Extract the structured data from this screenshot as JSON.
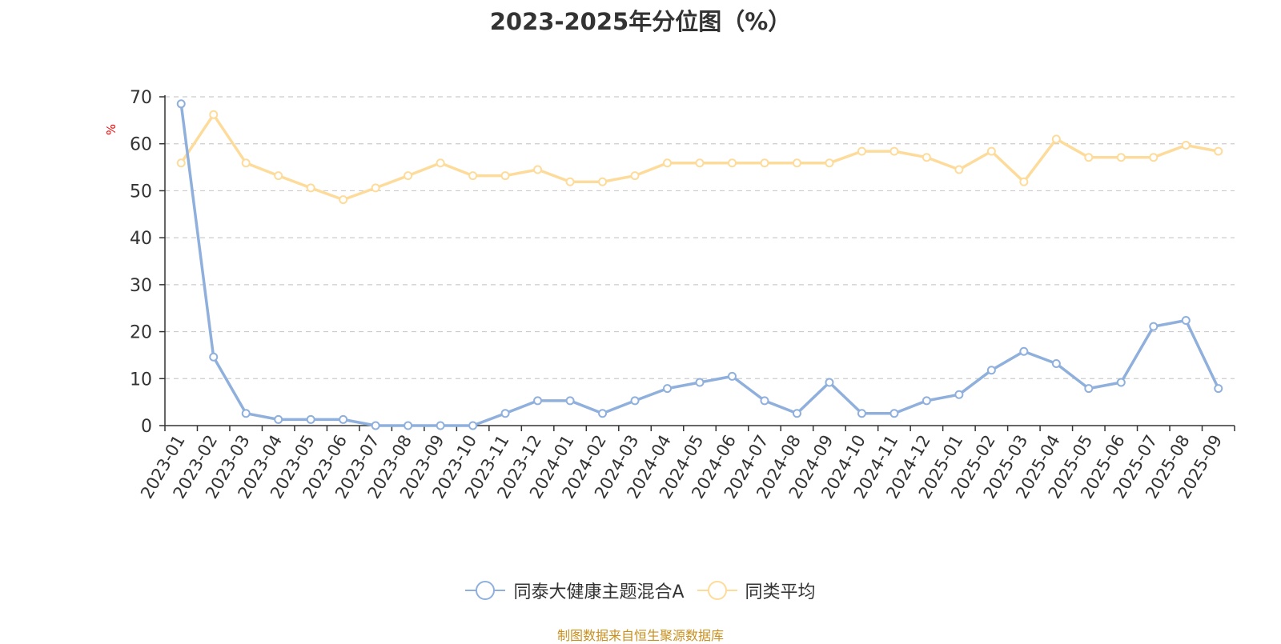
{
  "title": "2023-2025年分位图（%）",
  "source": "制图数据来自恒生聚源数据库",
  "chart_data": {
    "type": "line",
    "title": "2023-2025年分位图（%）",
    "ylabel": "%",
    "xlabel": "",
    "ylim": [
      0,
      70
    ],
    "yticks": [
      0,
      10,
      20,
      30,
      40,
      50,
      60,
      70
    ],
    "grid": true,
    "legend_position": "bottom-center",
    "categories": [
      "2023-01",
      "2023-02",
      "2023-03",
      "2023-04",
      "2023-05",
      "2023-06",
      "2023-07",
      "2023-08",
      "2023-09",
      "2023-10",
      "2023-11",
      "2023-12",
      "2024-01",
      "2024-02",
      "2024-03",
      "2024-04",
      "2024-05",
      "2024-06",
      "2024-07",
      "2024-08",
      "2024-09",
      "2024-10",
      "2024-11",
      "2024-12",
      "2025-01",
      "2025-02",
      "2025-03",
      "2025-04",
      "2025-05",
      "2025-06",
      "2025-07",
      "2025-08",
      "2025-09"
    ],
    "series": [
      {
        "name": "同泰大健康主题混合A",
        "color": "#8fb0dc",
        "values": [
          68.5,
          14.6,
          2.6,
          1.3,
          1.3,
          1.3,
          0,
          0,
          0,
          0,
          2.6,
          5.3,
          5.3,
          2.6,
          5.3,
          7.9,
          9.2,
          10.5,
          5.3,
          2.6,
          9.2,
          2.6,
          2.6,
          5.3,
          6.6,
          11.8,
          15.8,
          13.2,
          7.9,
          9.2,
          21.1,
          22.4,
          7.9
        ]
      },
      {
        "name": "同类平均",
        "color": "#fddc9b",
        "values": [
          55.9,
          66.2,
          55.9,
          53.2,
          50.6,
          48.1,
          50.6,
          53.2,
          55.9,
          53.2,
          53.2,
          54.5,
          51.9,
          51.9,
          53.2,
          55.9,
          55.9,
          55.9,
          55.9,
          55.9,
          55.9,
          58.4,
          58.4,
          57.1,
          54.5,
          58.4,
          51.9,
          61.0,
          57.1,
          57.1,
          57.1,
          59.7,
          58.4
        ]
      }
    ]
  },
  "colors": {
    "axis": "#333333",
    "grid": "#cccccc",
    "ylabel": "#ff0000",
    "source": "#c8901e"
  }
}
